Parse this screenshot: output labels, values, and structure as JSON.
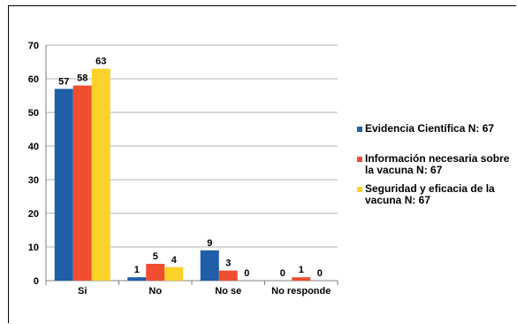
{
  "chart_data": {
    "type": "bar",
    "categories": [
      "Si",
      "No",
      "No se",
      "No responde"
    ],
    "series": [
      {
        "name": [
          "Evidencia Científica N: 67"
        ],
        "color": "#1f5ea8",
        "values": [
          57,
          1,
          9,
          0
        ]
      },
      {
        "name": [
          "Información necesaria sobre",
          "la vacuna N: 67"
        ],
        "color": "#f04e31",
        "values": [
          58,
          5,
          3,
          1
        ]
      },
      {
        "name": [
          "Seguridad y eficacia de la",
          "vacuna N: 67"
        ],
        "color": "#fcd12a",
        "values": [
          63,
          4,
          0,
          0
        ]
      }
    ],
    "ylim": [
      0,
      70
    ],
    "yticks": [
      0,
      10,
      20,
      30,
      40,
      50,
      60,
      70
    ],
    "grid": true,
    "legend": "right"
  }
}
